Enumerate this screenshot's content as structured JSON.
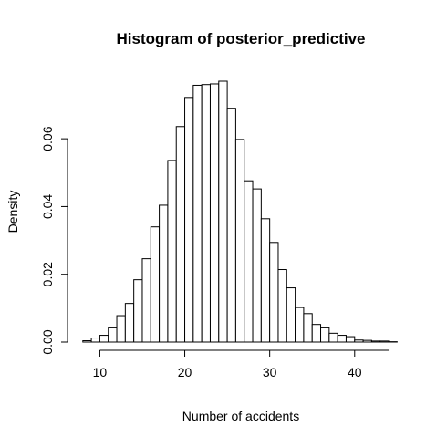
{
  "chart_data": {
    "type": "bar",
    "title": "Histogram of posterior_predictive",
    "xlabel": "Number of accidents",
    "ylabel": "Density",
    "bin_width": 1,
    "bins": [
      {
        "x0": 8,
        "x1": 9,
        "value": 0.0004
      },
      {
        "x0": 9,
        "x1": 10,
        "value": 0.0012
      },
      {
        "x0": 10,
        "x1": 11,
        "value": 0.002
      },
      {
        "x0": 11,
        "x1": 12,
        "value": 0.0042
      },
      {
        "x0": 12,
        "x1": 13,
        "value": 0.0078
      },
      {
        "x0": 13,
        "x1": 14,
        "value": 0.0114
      },
      {
        "x0": 14,
        "x1": 15,
        "value": 0.0184
      },
      {
        "x0": 15,
        "x1": 16,
        "value": 0.0246
      },
      {
        "x0": 16,
        "x1": 17,
        "value": 0.034
      },
      {
        "x0": 17,
        "x1": 18,
        "value": 0.0404
      },
      {
        "x0": 18,
        "x1": 19,
        "value": 0.0536
      },
      {
        "x0": 19,
        "x1": 20,
        "value": 0.0636
      },
      {
        "x0": 20,
        "x1": 21,
        "value": 0.0722
      },
      {
        "x0": 21,
        "x1": 22,
        "value": 0.0758
      },
      {
        "x0": 22,
        "x1": 23,
        "value": 0.076
      },
      {
        "x0": 23,
        "x1": 24,
        "value": 0.0762
      },
      {
        "x0": 24,
        "x1": 25,
        "value": 0.077
      },
      {
        "x0": 25,
        "x1": 26,
        "value": 0.069
      },
      {
        "x0": 26,
        "x1": 27,
        "value": 0.0598
      },
      {
        "x0": 27,
        "x1": 28,
        "value": 0.0476
      },
      {
        "x0": 28,
        "x1": 29,
        "value": 0.0452
      },
      {
        "x0": 29,
        "x1": 30,
        "value": 0.0364
      },
      {
        "x0": 30,
        "x1": 31,
        "value": 0.0294
      },
      {
        "x0": 31,
        "x1": 32,
        "value": 0.0214
      },
      {
        "x0": 32,
        "x1": 33,
        "value": 0.016
      },
      {
        "x0": 33,
        "x1": 34,
        "value": 0.0102
      },
      {
        "x0": 34,
        "x1": 35,
        "value": 0.0084
      },
      {
        "x0": 35,
        "x1": 36,
        "value": 0.0052
      },
      {
        "x0": 36,
        "x1": 37,
        "value": 0.0042
      },
      {
        "x0": 37,
        "x1": 38,
        "value": 0.0026
      },
      {
        "x0": 38,
        "x1": 39,
        "value": 0.002
      },
      {
        "x0": 39,
        "x1": 40,
        "value": 0.0016
      },
      {
        "x0": 40,
        "x1": 41,
        "value": 0.0006
      },
      {
        "x0": 41,
        "x1": 42,
        "value": 0.0005
      },
      {
        "x0": 42,
        "x1": 43,
        "value": 0.0003
      },
      {
        "x0": 43,
        "x1": 44,
        "value": 0.0003
      },
      {
        "x0": 44,
        "x1": 45,
        "value": 0.0001
      }
    ],
    "xlim": [
      7.7,
      45.5
    ],
    "ylim": [
      0,
      0.077
    ],
    "xticks": [
      10,
      20,
      30,
      40
    ],
    "xtick_labels": [
      "10",
      "20",
      "30",
      "40"
    ],
    "x_axis_range": [
      10,
      44
    ],
    "yticks": [
      0.0,
      0.02,
      0.04,
      0.06
    ],
    "ytick_labels": [
      "0.00",
      "0.02",
      "0.04",
      "0.06"
    ],
    "grid": false,
    "legend": "none",
    "colors": {
      "bar_fill": "#ffffff",
      "bar_stroke": "#000000",
      "background": "#ffffff"
    }
  }
}
